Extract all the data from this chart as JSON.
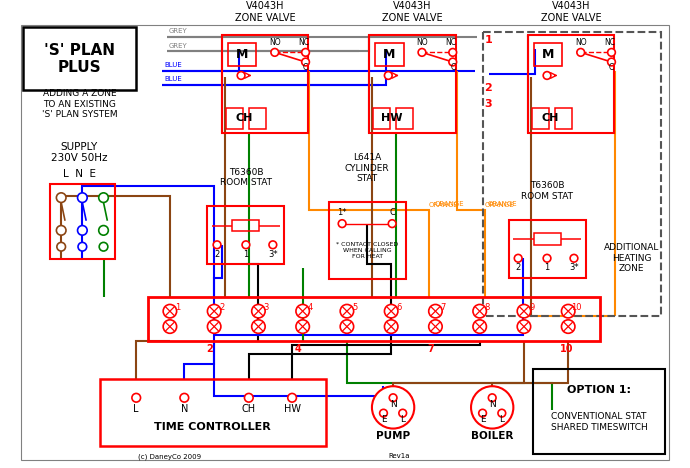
{
  "bg": "#ffffff",
  "red": "#ff0000",
  "blue": "#0000ff",
  "green": "#008000",
  "orange": "#ff8800",
  "brown": "#8B4513",
  "grey": "#808080",
  "black": "#000000",
  "dash_col": "#555555",
  "title1": "'S' PLAN\nPLUS",
  "subtitle": "ADDING A ZONE\nTO AN EXISTING\n'S' PLAN SYSTEM",
  "supply": "SUPPLY\n230V 50Hz",
  "lne": "L  N  E",
  "tc_label": "TIME CONTROLLER",
  "tc_terms": [
    "L",
    "N",
    "CH",
    "HW"
  ],
  "terminal_nums": [
    "1",
    "2",
    "3",
    "4",
    "5",
    "6",
    "7",
    "8",
    "9",
    "10"
  ],
  "pump_label": "PUMP",
  "boiler_label": "BOILER",
  "option1": "OPTION 1:",
  "option_sub": "CONVENTIONAL STAT\nSHARED TIMESWITCH",
  "add_zone": "ADDITIONAL\nHEATING\nZONE",
  "copyright": "(c) DaneyCo 2009",
  "rev": "Rev1a",
  "contact_note": "* CONTACT CLOSED\nWHEN CALLING\nFOR HEAT"
}
